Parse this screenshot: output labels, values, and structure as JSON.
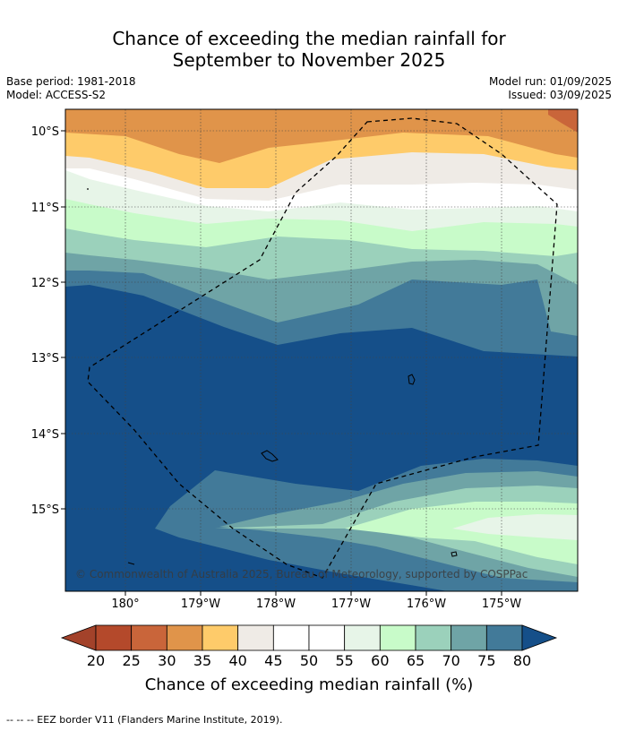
{
  "title_line1": "Chance of exceeding the median rainfall for",
  "title_line2": "September to November 2025",
  "meta_left": [
    "Base period: 1981-2018",
    "Model: ACCESS-S2"
  ],
  "meta_right": [
    "Model run: 01/09/2025",
    "Issued: 03/09/2025"
  ],
  "lat_labels": [
    "10°S",
    "11°S",
    "12°S",
    "13°S",
    "14°S",
    "15°S"
  ],
  "lon_labels": [
    "180°",
    "179°W",
    "178°W",
    "177°W",
    "176°W",
    "175°W"
  ],
  "copyright": "© Commonwealth of Australia 2025, Bureau of Meteorology, supported by COSPPac",
  "colorbar": {
    "levels": [
      "20",
      "25",
      "30",
      "35",
      "40",
      "45",
      "50",
      "55",
      "60",
      "65",
      "70",
      "75",
      "80"
    ],
    "colors": [
      "#a3422a",
      "#b4492b",
      "#c9653a",
      "#e0944a",
      "#fecb6a",
      "#efebe6",
      "#ffffff",
      "#ffffff",
      "#e7f5e8",
      "#c8fbc9",
      "#9bd1bb",
      "#6fa4a6",
      "#427a99",
      "#154f89"
    ],
    "label": "Chance of exceeding median rainfall (%)"
  },
  "footnote": "-- -- -- EEZ border V11 (Flanders Marine Institute, 2019)."
}
